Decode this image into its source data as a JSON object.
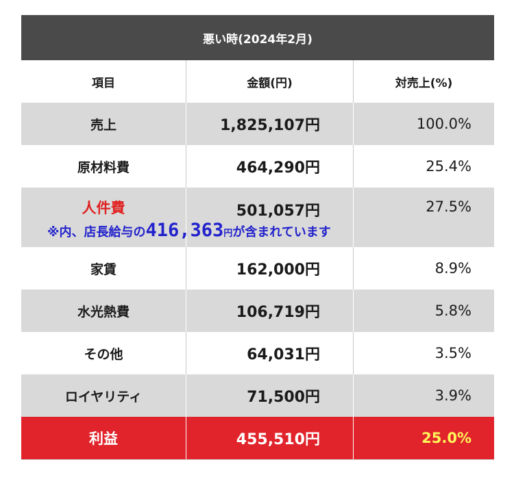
{
  "title": "悪い時(2024年2月)",
  "headers": {
    "item": "項目",
    "amount": "金額(円)",
    "ratio": "対売上(%)"
  },
  "rows": [
    {
      "item": "売上",
      "amount": "1,825,107円",
      "ratio": "100.0%"
    },
    {
      "item": "原材料費",
      "amount": "464,290円",
      "ratio": "25.4%"
    },
    {
      "item": "人件費",
      "amount": "501,057円",
      "ratio": "27.5%"
    },
    {
      "item": "家賃",
      "amount": "162,000円",
      "ratio": "8.9%"
    },
    {
      "item": "水光熱費",
      "amount": "106,719円",
      "ratio": "5.8%"
    },
    {
      "item": "その他",
      "amount": "64,031円",
      "ratio": "3.5%"
    },
    {
      "item": "ロイヤリティ",
      "amount": "71,500円",
      "ratio": "3.9%"
    },
    {
      "item": "利益",
      "amount": "455,510円",
      "ratio": "25.0%"
    }
  ],
  "note": {
    "prefix": "※内、店長給与の",
    "value": "416,363",
    "unit": "円",
    "suffix": "が含まれています"
  },
  "colors": {
    "title_bg": "#4a4a4a",
    "stripe": "#d9d9d9",
    "highlight_label": "#e02020",
    "note": "#2222cc",
    "profit_bg": "#e1242b",
    "profit_ratio": "#fff65a"
  }
}
